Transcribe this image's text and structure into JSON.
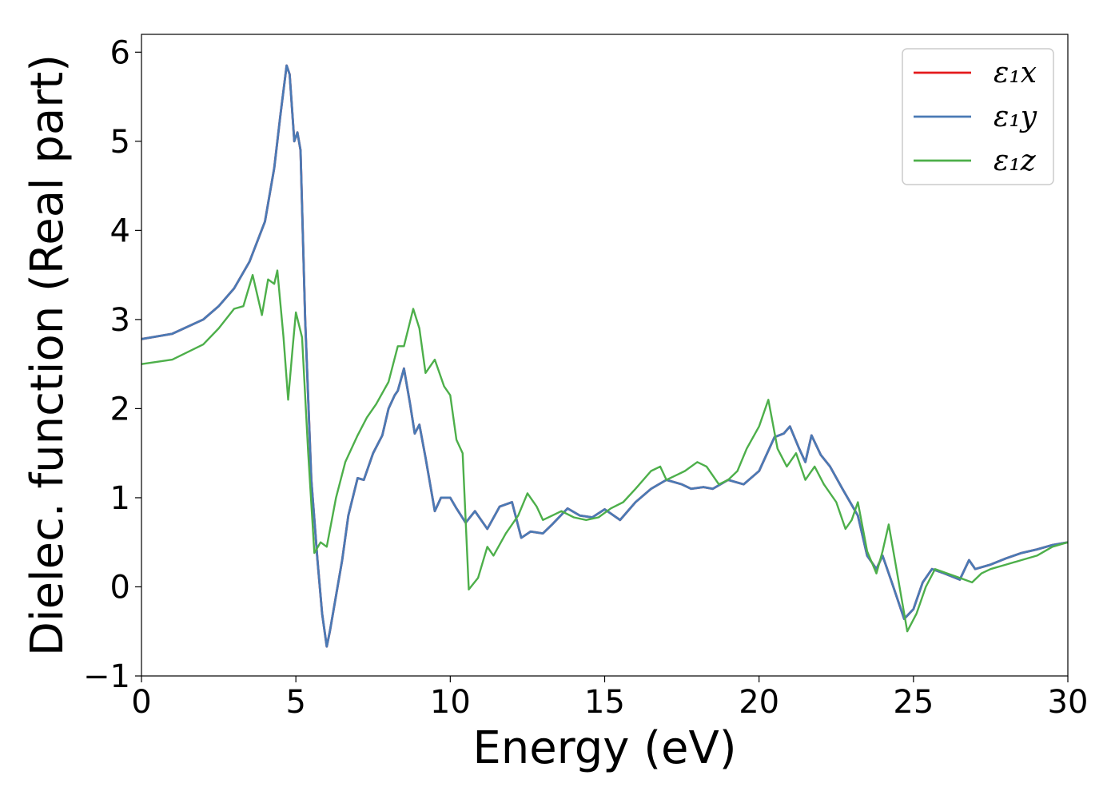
{
  "chart_data": {
    "type": "line",
    "title": "",
    "xlabel": "Energy (eV)",
    "ylabel": "Dielec. function (Real part)",
    "xlim": [
      0,
      30
    ],
    "ylim": [
      -1,
      6.2
    ],
    "x_ticks": [
      0,
      5,
      10,
      15,
      20,
      25,
      30
    ],
    "y_ticks": [
      -1,
      0,
      1,
      2,
      3,
      4,
      5,
      6
    ],
    "x_tick_labels": [
      "0",
      "5",
      "10",
      "15",
      "20",
      "25",
      "30"
    ],
    "y_tick_labels": [
      "−1",
      "0",
      "1",
      "2",
      "3",
      "4",
      "5",
      "6"
    ],
    "grid": false,
    "legend_position": "top-right",
    "series": [
      {
        "name": "ε₁x",
        "color": "#e41a1c",
        "points": [
          [
            0,
            2.78
          ],
          [
            1,
            2.84
          ],
          [
            2,
            3.0
          ],
          [
            2.5,
            3.15
          ],
          [
            3,
            3.35
          ],
          [
            3.5,
            3.65
          ],
          [
            4,
            4.1
          ],
          [
            4.3,
            4.7
          ],
          [
            4.5,
            5.3
          ],
          [
            4.7,
            5.85
          ],
          [
            4.8,
            5.75
          ],
          [
            4.95,
            5.0
          ],
          [
            5.05,
            5.1
          ],
          [
            5.15,
            4.9
          ],
          [
            5.3,
            3.0
          ],
          [
            5.5,
            1.2
          ],
          [
            5.7,
            0.3
          ],
          [
            5.85,
            -0.3
          ],
          [
            6.0,
            -0.67
          ],
          [
            6.1,
            -0.5
          ],
          [
            6.3,
            -0.1
          ],
          [
            6.5,
            0.3
          ],
          [
            6.7,
            0.8
          ],
          [
            7.0,
            1.22
          ],
          [
            7.2,
            1.2
          ],
          [
            7.5,
            1.5
          ],
          [
            7.8,
            1.7
          ],
          [
            8.0,
            2.0
          ],
          [
            8.2,
            2.15
          ],
          [
            8.3,
            2.2
          ],
          [
            8.5,
            2.45
          ],
          [
            8.7,
            2.05
          ],
          [
            8.85,
            1.72
          ],
          [
            9.0,
            1.82
          ],
          [
            9.2,
            1.45
          ],
          [
            9.5,
            0.85
          ],
          [
            9.7,
            1.0
          ],
          [
            10.0,
            1.0
          ],
          [
            10.2,
            0.88
          ],
          [
            10.5,
            0.72
          ],
          [
            10.8,
            0.85
          ],
          [
            11.2,
            0.65
          ],
          [
            11.6,
            0.9
          ],
          [
            12.0,
            0.95
          ],
          [
            12.3,
            0.55
          ],
          [
            12.6,
            0.62
          ],
          [
            13.0,
            0.6
          ],
          [
            13.3,
            0.7
          ],
          [
            13.8,
            0.88
          ],
          [
            14.2,
            0.8
          ],
          [
            14.6,
            0.78
          ],
          [
            15.0,
            0.87
          ],
          [
            15.5,
            0.75
          ],
          [
            16.0,
            0.95
          ],
          [
            16.5,
            1.1
          ],
          [
            17.0,
            1.2
          ],
          [
            17.5,
            1.15
          ],
          [
            17.8,
            1.1
          ],
          [
            18.2,
            1.12
          ],
          [
            18.5,
            1.1
          ],
          [
            19.0,
            1.2
          ],
          [
            19.5,
            1.15
          ],
          [
            20.0,
            1.3
          ],
          [
            20.5,
            1.68
          ],
          [
            20.8,
            1.72
          ],
          [
            21.0,
            1.8
          ],
          [
            21.3,
            1.55
          ],
          [
            21.5,
            1.4
          ],
          [
            21.7,
            1.7
          ],
          [
            22.0,
            1.48
          ],
          [
            22.3,
            1.35
          ],
          [
            22.7,
            1.1
          ],
          [
            23.2,
            0.8
          ],
          [
            23.5,
            0.35
          ],
          [
            23.8,
            0.2
          ],
          [
            24.0,
            0.35
          ],
          [
            24.3,
            0.05
          ],
          [
            24.7,
            -0.36
          ],
          [
            25.0,
            -0.25
          ],
          [
            25.3,
            0.05
          ],
          [
            25.6,
            0.2
          ],
          [
            26.0,
            0.15
          ],
          [
            26.5,
            0.08
          ],
          [
            26.8,
            0.3
          ],
          [
            27.0,
            0.2
          ],
          [
            27.5,
            0.25
          ],
          [
            28.0,
            0.32
          ],
          [
            28.5,
            0.38
          ],
          [
            29.0,
            0.42
          ],
          [
            29.5,
            0.47
          ],
          [
            30.0,
            0.5
          ]
        ]
      },
      {
        "name": "ε₁y",
        "color": "#4a7ab5",
        "points": [
          [
            0,
            2.78
          ],
          [
            1,
            2.84
          ],
          [
            2,
            3.0
          ],
          [
            2.5,
            3.15
          ],
          [
            3,
            3.35
          ],
          [
            3.5,
            3.65
          ],
          [
            4,
            4.1
          ],
          [
            4.3,
            4.7
          ],
          [
            4.5,
            5.3
          ],
          [
            4.7,
            5.85
          ],
          [
            4.8,
            5.75
          ],
          [
            4.95,
            5.0
          ],
          [
            5.05,
            5.1
          ],
          [
            5.15,
            4.9
          ],
          [
            5.3,
            3.0
          ],
          [
            5.5,
            1.2
          ],
          [
            5.7,
            0.3
          ],
          [
            5.85,
            -0.3
          ],
          [
            6.0,
            -0.67
          ],
          [
            6.1,
            -0.5
          ],
          [
            6.3,
            -0.1
          ],
          [
            6.5,
            0.3
          ],
          [
            6.7,
            0.8
          ],
          [
            7.0,
            1.22
          ],
          [
            7.2,
            1.2
          ],
          [
            7.5,
            1.5
          ],
          [
            7.8,
            1.7
          ],
          [
            8.0,
            2.0
          ],
          [
            8.2,
            2.15
          ],
          [
            8.3,
            2.2
          ],
          [
            8.5,
            2.45
          ],
          [
            8.7,
            2.05
          ],
          [
            8.85,
            1.72
          ],
          [
            9.0,
            1.82
          ],
          [
            9.2,
            1.45
          ],
          [
            9.5,
            0.85
          ],
          [
            9.7,
            1.0
          ],
          [
            10.0,
            1.0
          ],
          [
            10.2,
            0.88
          ],
          [
            10.5,
            0.72
          ],
          [
            10.8,
            0.85
          ],
          [
            11.2,
            0.65
          ],
          [
            11.6,
            0.9
          ],
          [
            12.0,
            0.95
          ],
          [
            12.3,
            0.55
          ],
          [
            12.6,
            0.62
          ],
          [
            13.0,
            0.6
          ],
          [
            13.3,
            0.7
          ],
          [
            13.8,
            0.88
          ],
          [
            14.2,
            0.8
          ],
          [
            14.6,
            0.78
          ],
          [
            15.0,
            0.87
          ],
          [
            15.5,
            0.75
          ],
          [
            16.0,
            0.95
          ],
          [
            16.5,
            1.1
          ],
          [
            17.0,
            1.2
          ],
          [
            17.5,
            1.15
          ],
          [
            17.8,
            1.1
          ],
          [
            18.2,
            1.12
          ],
          [
            18.5,
            1.1
          ],
          [
            19.0,
            1.2
          ],
          [
            19.5,
            1.15
          ],
          [
            20.0,
            1.3
          ],
          [
            20.5,
            1.68
          ],
          [
            20.8,
            1.72
          ],
          [
            21.0,
            1.8
          ],
          [
            21.3,
            1.55
          ],
          [
            21.5,
            1.4
          ],
          [
            21.7,
            1.7
          ],
          [
            22.0,
            1.48
          ],
          [
            22.3,
            1.35
          ],
          [
            22.7,
            1.1
          ],
          [
            23.2,
            0.8
          ],
          [
            23.5,
            0.35
          ],
          [
            23.8,
            0.2
          ],
          [
            24.0,
            0.35
          ],
          [
            24.3,
            0.05
          ],
          [
            24.7,
            -0.36
          ],
          [
            25.0,
            -0.25
          ],
          [
            25.3,
            0.05
          ],
          [
            25.6,
            0.2
          ],
          [
            26.0,
            0.15
          ],
          [
            26.5,
            0.08
          ],
          [
            26.8,
            0.3
          ],
          [
            27.0,
            0.2
          ],
          [
            27.5,
            0.25
          ],
          [
            28.0,
            0.32
          ],
          [
            28.5,
            0.38
          ],
          [
            29.0,
            0.42
          ],
          [
            29.5,
            0.47
          ],
          [
            30.0,
            0.5
          ]
        ]
      },
      {
        "name": "ε₁z",
        "color": "#4daf4a",
        "points": [
          [
            0,
            2.5
          ],
          [
            1,
            2.55
          ],
          [
            2,
            2.72
          ],
          [
            2.5,
            2.9
          ],
          [
            3,
            3.12
          ],
          [
            3.3,
            3.15
          ],
          [
            3.6,
            3.5
          ],
          [
            3.9,
            3.05
          ],
          [
            4.1,
            3.45
          ],
          [
            4.3,
            3.4
          ],
          [
            4.4,
            3.55
          ],
          [
            4.6,
            2.8
          ],
          [
            4.75,
            2.1
          ],
          [
            4.9,
            2.7
          ],
          [
            5.0,
            3.08
          ],
          [
            5.2,
            2.8
          ],
          [
            5.4,
            1.5
          ],
          [
            5.6,
            0.38
          ],
          [
            5.8,
            0.5
          ],
          [
            6.0,
            0.45
          ],
          [
            6.3,
            1.0
          ],
          [
            6.6,
            1.4
          ],
          [
            7.0,
            1.7
          ],
          [
            7.3,
            1.9
          ],
          [
            7.6,
            2.05
          ],
          [
            8.0,
            2.3
          ],
          [
            8.3,
            2.7
          ],
          [
            8.5,
            2.7
          ],
          [
            8.8,
            3.12
          ],
          [
            9.0,
            2.9
          ],
          [
            9.2,
            2.4
          ],
          [
            9.5,
            2.55
          ],
          [
            9.8,
            2.25
          ],
          [
            10.0,
            2.15
          ],
          [
            10.2,
            1.65
          ],
          [
            10.4,
            1.5
          ],
          [
            10.6,
            -0.03
          ],
          [
            10.9,
            0.1
          ],
          [
            11.2,
            0.45
          ],
          [
            11.4,
            0.35
          ],
          [
            11.8,
            0.6
          ],
          [
            12.2,
            0.8
          ],
          [
            12.5,
            1.05
          ],
          [
            12.8,
            0.9
          ],
          [
            13.0,
            0.75
          ],
          [
            13.3,
            0.8
          ],
          [
            13.6,
            0.85
          ],
          [
            14.0,
            0.78
          ],
          [
            14.4,
            0.75
          ],
          [
            14.8,
            0.78
          ],
          [
            15.2,
            0.88
          ],
          [
            15.6,
            0.95
          ],
          [
            16.0,
            1.1
          ],
          [
            16.5,
            1.3
          ],
          [
            16.8,
            1.35
          ],
          [
            17.0,
            1.2
          ],
          [
            17.3,
            1.25
          ],
          [
            17.6,
            1.3
          ],
          [
            18.0,
            1.4
          ],
          [
            18.3,
            1.35
          ],
          [
            18.7,
            1.15
          ],
          [
            19.0,
            1.2
          ],
          [
            19.3,
            1.3
          ],
          [
            19.6,
            1.55
          ],
          [
            20.0,
            1.8
          ],
          [
            20.3,
            2.1
          ],
          [
            20.6,
            1.55
          ],
          [
            20.9,
            1.35
          ],
          [
            21.2,
            1.5
          ],
          [
            21.5,
            1.2
          ],
          [
            21.8,
            1.35
          ],
          [
            22.1,
            1.15
          ],
          [
            22.5,
            0.95
          ],
          [
            22.8,
            0.65
          ],
          [
            23.0,
            0.75
          ],
          [
            23.2,
            0.95
          ],
          [
            23.5,
            0.4
          ],
          [
            23.8,
            0.15
          ],
          [
            24.0,
            0.4
          ],
          [
            24.2,
            0.7
          ],
          [
            24.5,
            0.1
          ],
          [
            24.8,
            -0.5
          ],
          [
            25.1,
            -0.3
          ],
          [
            25.4,
            0.0
          ],
          [
            25.7,
            0.2
          ],
          [
            26.1,
            0.15
          ],
          [
            26.5,
            0.1
          ],
          [
            26.9,
            0.05
          ],
          [
            27.2,
            0.15
          ],
          [
            27.5,
            0.2
          ],
          [
            28.0,
            0.25
          ],
          [
            28.5,
            0.3
          ],
          [
            29.0,
            0.35
          ],
          [
            29.5,
            0.45
          ],
          [
            30.0,
            0.5
          ]
        ]
      }
    ]
  }
}
